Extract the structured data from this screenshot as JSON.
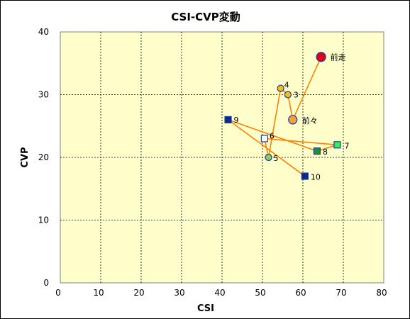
{
  "chart_data": {
    "type": "scatter",
    "title": "CSI-CVP変動",
    "xlabel": "CSI",
    "ylabel": "CVP",
    "xlim": [
      0,
      80
    ],
    "ylim": [
      0,
      40
    ],
    "xticks": [
      0,
      10,
      20,
      30,
      40,
      50,
      60,
      70,
      80
    ],
    "yticks": [
      0,
      10,
      20,
      30,
      40
    ],
    "grid": true,
    "colors": {
      "plot_bg": "#ffffcc",
      "line": "#ff8000",
      "big_circle": "#e60012",
      "mid_circle": "#f7a23a",
      "small_circle": "#f2c21b",
      "small_circle_green": "#8fd14f",
      "square_navy": "#0a2a8c",
      "square_green": "#1f8f2f",
      "square_lime": "#33ee55",
      "square_white": "#ffffff",
      "marker_edge": "#1b3aa0"
    },
    "points": [
      {
        "label": "前走",
        "x": 64.5,
        "y": 36,
        "marker": "big_circle"
      },
      {
        "label": "前々",
        "x": 57.5,
        "y": 26,
        "marker": "mid_circle"
      },
      {
        "label": "3",
        "x": 56.3,
        "y": 30,
        "marker": "small_circle"
      },
      {
        "label": "4",
        "x": 54.5,
        "y": 31,
        "marker": "small_circle"
      },
      {
        "label": "5",
        "x": 51.5,
        "y": 20,
        "marker": "small_circle_green"
      },
      {
        "label": "6",
        "x": 50.5,
        "y": 23,
        "marker": "square_white"
      },
      {
        "label": "7",
        "x": 68.5,
        "y": 22,
        "marker": "square_lime"
      },
      {
        "label": "8",
        "x": 63.5,
        "y": 21,
        "marker": "square_green"
      },
      {
        "label": "9",
        "x": 41.5,
        "y": 26,
        "marker": "square_navy"
      },
      {
        "label": "10",
        "x": 60.5,
        "y": 17,
        "marker": "square_navy"
      }
    ]
  }
}
